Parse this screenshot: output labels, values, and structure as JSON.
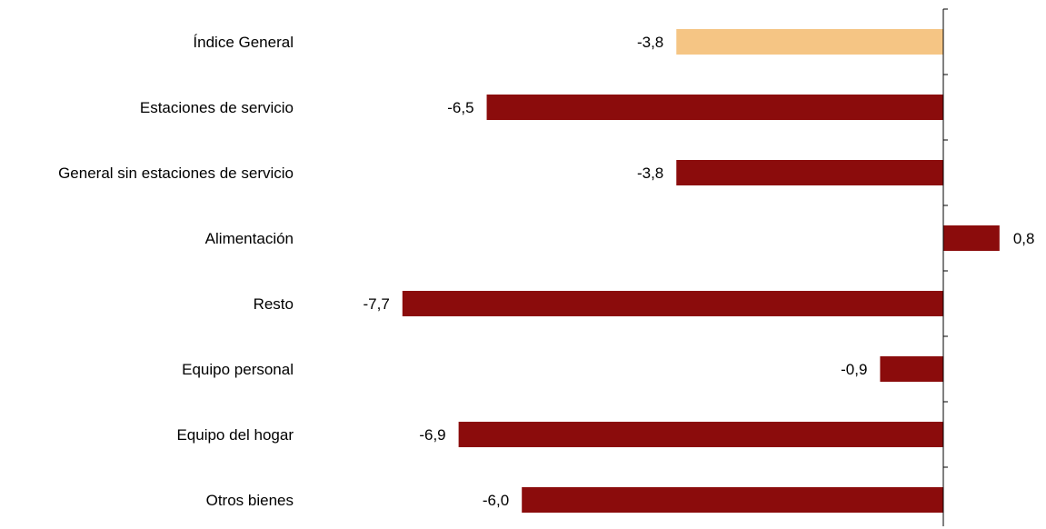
{
  "chart_data": {
    "type": "bar",
    "orientation": "horizontal",
    "categories": [
      "Índice General",
      "Estaciones de servicio",
      "General sin estaciones de servicio",
      "Alimentación",
      "Resto",
      "Equipo personal",
      "Equipo del hogar",
      "Otros bienes"
    ],
    "values": [
      -3.8,
      -6.5,
      -3.8,
      0.8,
      -7.7,
      -0.9,
      -6.9,
      -6.0
    ],
    "value_labels": [
      "-3,8",
      "-6,5",
      "-3,8",
      "0,8",
      "-7,7",
      "-0,9",
      "-6,9",
      "-6,0"
    ],
    "highlight_index": 0,
    "colors": {
      "highlight": "#F5C584",
      "bar": "#8B0C0C",
      "axis": "#000000"
    },
    "title": "",
    "xlabel": "",
    "ylabel": "",
    "grid": false,
    "legend": "none"
  }
}
